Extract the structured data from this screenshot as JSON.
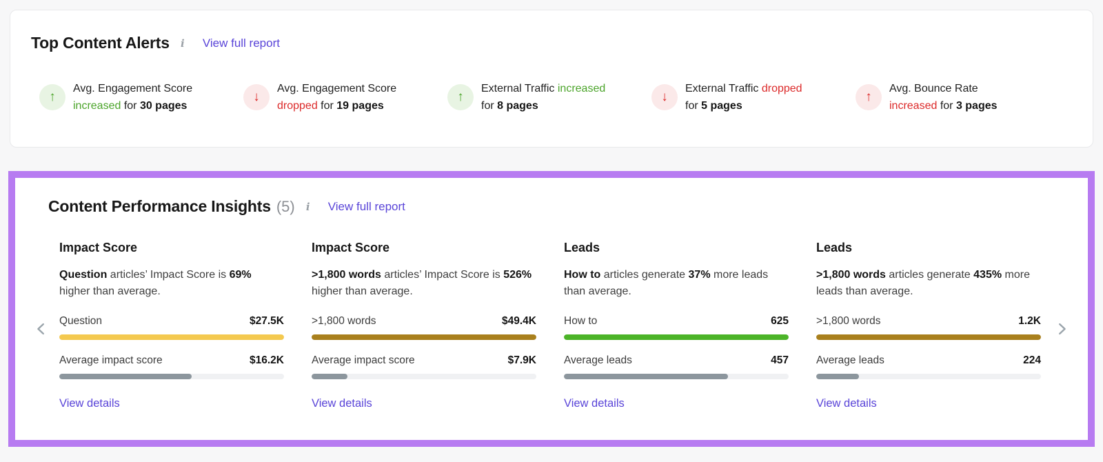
{
  "colors": {
    "accent_purple_border": "#B77BF1",
    "link_purple": "#5944D8",
    "positive_green": "#4BA42A",
    "negative_red": "#DC2A2A",
    "positive_circle_bg": "#E8F4E3",
    "negative_circle_bg": "#FBE9E9",
    "bar_yellow": "#F4C94F",
    "bar_gold": "#A9801D",
    "bar_green": "#4CB428",
    "bar_gray": "#8C969D",
    "bar_track": "#F0F1F3"
  },
  "alerts_panel": {
    "title": "Top Content Alerts",
    "info_icon": "i",
    "view_full_report_label": "View full report",
    "alerts": [
      {
        "arrow_icon": "up-arrow-icon",
        "tone": "positive",
        "lines": [
          [
            {
              "t": "Avg. Engagement Score"
            }
          ],
          [
            {
              "t": "increased",
              "cls": "green"
            },
            {
              "t": " for "
            },
            {
              "t": "30 pages",
              "cls": "bold"
            }
          ]
        ]
      },
      {
        "arrow_icon": "down-arrow-icon",
        "tone": "negative",
        "lines": [
          [
            {
              "t": "Avg. Engagement Score"
            }
          ],
          [
            {
              "t": "dropped",
              "cls": "red"
            },
            {
              "t": " for "
            },
            {
              "t": "19 pages",
              "cls": "bold"
            }
          ]
        ]
      },
      {
        "arrow_icon": "up-arrow-icon",
        "tone": "positive",
        "lines": [
          [
            {
              "t": "External Traffic "
            },
            {
              "t": "increased",
              "cls": "green"
            }
          ],
          [
            {
              "t": "for "
            },
            {
              "t": "8 pages",
              "cls": "bold"
            }
          ]
        ]
      },
      {
        "arrow_icon": "down-arrow-icon",
        "tone": "negative",
        "lines": [
          [
            {
              "t": "External Traffic "
            },
            {
              "t": "dropped",
              "cls": "red"
            }
          ],
          [
            {
              "t": "for "
            },
            {
              "t": "5 pages",
              "cls": "bold"
            }
          ]
        ]
      },
      {
        "arrow_icon": "up-arrow-icon",
        "tone": "negative",
        "lines": [
          [
            {
              "t": "Avg. Bounce Rate"
            }
          ],
          [
            {
              "t": "increased",
              "cls": "red"
            },
            {
              "t": " for "
            },
            {
              "t": "3 pages",
              "cls": "bold"
            }
          ]
        ]
      }
    ]
  },
  "insights_panel": {
    "title": "Content Performance Insights",
    "count": "(5)",
    "info_icon": "i",
    "view_full_report_label": "View full report",
    "cards": [
      {
        "title": "Impact Score",
        "description": [
          {
            "t": "Question",
            "cls": "bold"
          },
          {
            "t": " articles’ Impact Score is "
          },
          {
            "t": "69%",
            "cls": "bold"
          },
          {
            "t": " higher than average."
          }
        ],
        "rows": [
          {
            "label": "Question",
            "value": "$27.5K",
            "fill_pct": 100,
            "color": "#F4C94F"
          },
          {
            "label": "Average impact score",
            "value": "$16.2K",
            "fill_pct": 59,
            "color": "#8C969D"
          }
        ],
        "details_link": "View details"
      },
      {
        "title": "Impact Score",
        "description": [
          {
            "t": ">1,800 words",
            "cls": "bold"
          },
          {
            "t": " articles’ Impact Score is "
          },
          {
            "t": "526%",
            "cls": "bold"
          },
          {
            "t": " higher than average."
          }
        ],
        "rows": [
          {
            "label": ">1,800 words",
            "value": "$49.4K",
            "fill_pct": 100,
            "color": "#A9801D"
          },
          {
            "label": "Average impact score",
            "value": "$7.9K",
            "fill_pct": 16,
            "color": "#8C969D"
          }
        ],
        "details_link": "View details"
      },
      {
        "title": "Leads",
        "description": [
          {
            "t": "How to",
            "cls": "bold"
          },
          {
            "t": " articles generate "
          },
          {
            "t": "37%",
            "cls": "bold"
          },
          {
            "t": " more leads than average."
          }
        ],
        "rows": [
          {
            "label": "How to",
            "value": "625",
            "fill_pct": 100,
            "color": "#4CB428"
          },
          {
            "label": "Average leads",
            "value": "457",
            "fill_pct": 73,
            "color": "#8C969D"
          }
        ],
        "details_link": "View details"
      },
      {
        "title": "Leads",
        "description": [
          {
            "t": ">1,800 words",
            "cls": "bold"
          },
          {
            "t": " articles generate "
          },
          {
            "t": "435%",
            "cls": "bold"
          },
          {
            "t": " more leads than average."
          }
        ],
        "rows": [
          {
            "label": ">1,800 words",
            "value": "1.2K",
            "fill_pct": 100,
            "color": "#A9801D"
          },
          {
            "label": "Average leads",
            "value": "224",
            "fill_pct": 19,
            "color": "#8C969D"
          }
        ],
        "details_link": "View details"
      }
    ]
  }
}
